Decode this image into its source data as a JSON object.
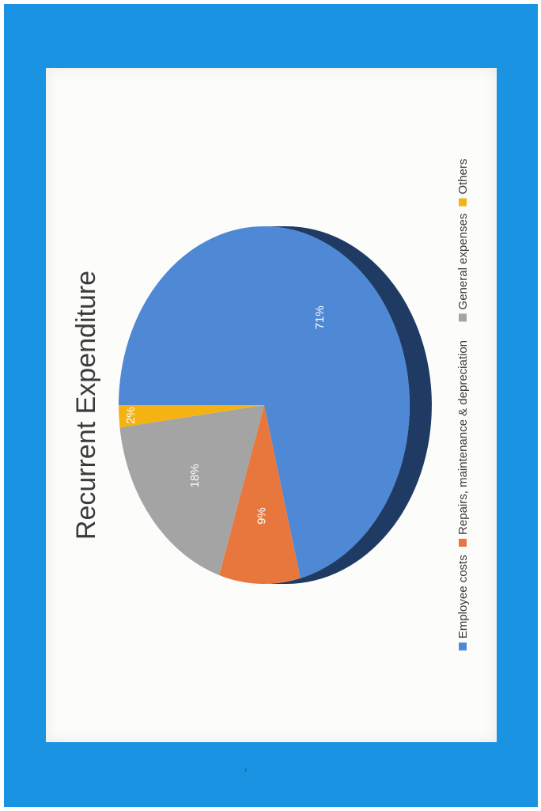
{
  "colors": {
    "frame": "#1a94e2",
    "slide": "#fcfcfb",
    "employee": "#4f88d4",
    "employee_side": "#1f3b63",
    "repairs": "#e8773e",
    "general": "#a4a4a4",
    "others": "#f4b313"
  },
  "chart_data": {
    "type": "pie",
    "title": "Recurrent Expenditure",
    "orientation": "rotated-90-ccw",
    "style": "3d",
    "legend_position": "bottom",
    "labels": [
      "Employee costs",
      "Repairs, maintenance & depreciation",
      "General expenses",
      "Others"
    ],
    "values": [
      71,
      9,
      18,
      2
    ],
    "data_labels": [
      "71%",
      "9%",
      "18%",
      "2%"
    ],
    "colors": [
      "#4f88d4",
      "#e8773e",
      "#a4a4a4",
      "#f4b313"
    ]
  }
}
